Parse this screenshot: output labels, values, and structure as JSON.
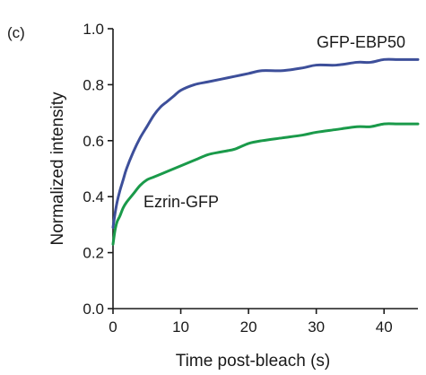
{
  "panel_label": "(c)",
  "chart_data": {
    "type": "line",
    "title": "",
    "xlabel": "Time post-bleach (s)",
    "ylabel": "Normalized intensity",
    "xlim": [
      0,
      45
    ],
    "ylim": [
      0.0,
      1.0
    ],
    "xticks": [
      0,
      10,
      20,
      30,
      40
    ],
    "xtick_labels": [
      "0",
      "10",
      "20",
      "30",
      "40"
    ],
    "yticks": [
      0.0,
      0.2,
      0.4,
      0.6,
      0.8,
      1.0
    ],
    "ytick_labels": [
      "0.0",
      "0.2",
      "0.4",
      "0.6",
      "0.8",
      "1.0"
    ],
    "grid": false,
    "legend": "none",
    "series": [
      {
        "name": "GFP-EBP50",
        "color": "#3d4f9a",
        "x": [
          0,
          0.3,
          0.6,
          1,
          1.5,
          2,
          3,
          4,
          5,
          6,
          7,
          8,
          9,
          10,
          12,
          14,
          16,
          18,
          20,
          22,
          25,
          28,
          30,
          33,
          36,
          38,
          40,
          42,
          44,
          45
        ],
        "y": [
          0.29,
          0.34,
          0.38,
          0.42,
          0.46,
          0.5,
          0.56,
          0.61,
          0.65,
          0.69,
          0.72,
          0.74,
          0.76,
          0.78,
          0.8,
          0.81,
          0.82,
          0.83,
          0.84,
          0.85,
          0.85,
          0.86,
          0.87,
          0.87,
          0.88,
          0.88,
          0.89,
          0.89,
          0.89,
          0.89
        ]
      },
      {
        "name": "Ezrin-GFP",
        "color": "#1a9a4a",
        "x": [
          0,
          0.3,
          0.6,
          1,
          1.5,
          2,
          3,
          4,
          5,
          6,
          8,
          10,
          12,
          14,
          16,
          18,
          20,
          22,
          25,
          28,
          30,
          33,
          36,
          38,
          40,
          42,
          44,
          45
        ],
        "y": [
          0.23,
          0.28,
          0.31,
          0.33,
          0.36,
          0.38,
          0.41,
          0.44,
          0.46,
          0.47,
          0.49,
          0.51,
          0.53,
          0.55,
          0.56,
          0.57,
          0.59,
          0.6,
          0.61,
          0.62,
          0.63,
          0.64,
          0.65,
          0.65,
          0.66,
          0.66,
          0.66,
          0.66
        ]
      }
    ],
    "annotations": [
      {
        "text": "GFP-EBP50",
        "series": "GFP-EBP50"
      },
      {
        "text": "Ezrin-GFP",
        "series": "Ezrin-GFP"
      }
    ]
  }
}
